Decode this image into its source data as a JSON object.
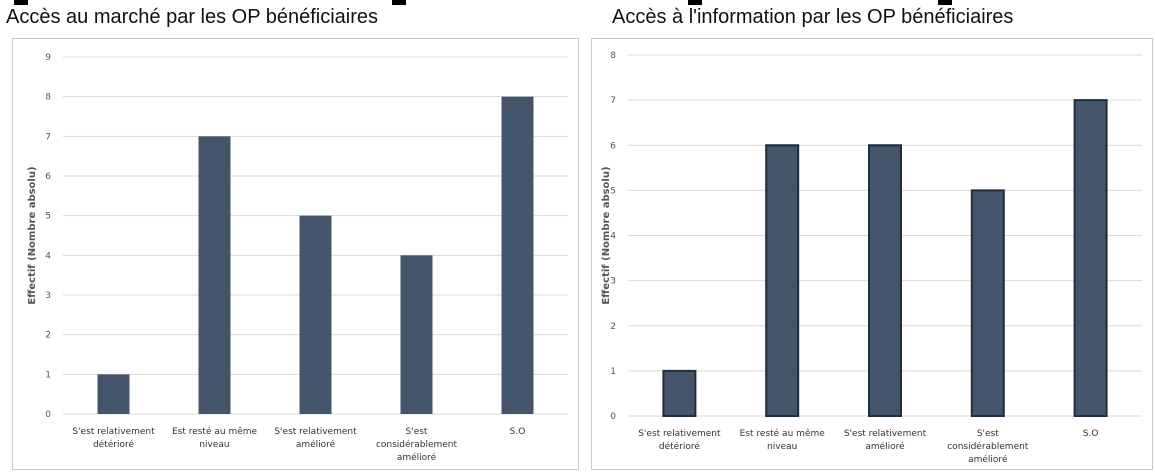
{
  "charts": [
    {
      "title": "Accès au marché par les OP bénéficiaires",
      "chart_data": {
        "type": "bar",
        "categories": [
          [
            "S'est relativement",
            "détérioré"
          ],
          [
            "Est resté au même",
            "niveau"
          ],
          [
            "S'est relativement",
            "amélioré"
          ],
          [
            "S'est",
            "considérablement",
            "amélioré"
          ],
          [
            "S.O"
          ]
        ],
        "values": [
          1,
          7,
          5,
          4,
          8
        ],
        "ylim": [
          0,
          9
        ],
        "yticks": [
          0,
          1,
          2,
          3,
          4,
          5,
          6,
          7,
          8,
          9
        ],
        "ylabel": "Effectif (Nombre absolu)",
        "xlabel": "",
        "grid": true
      }
    },
    {
      "title": "Accès à l'information par les OP bénéficiaires",
      "chart_data": {
        "type": "bar",
        "categories": [
          [
            "S'est relativement",
            "détérioré"
          ],
          [
            "Est resté au même",
            "niveau"
          ],
          [
            "S'est relativement",
            "amélioré"
          ],
          [
            "S'est",
            "considérablement",
            "amélioré"
          ],
          [
            "S.O"
          ]
        ],
        "values": [
          1,
          6,
          6,
          5,
          7
        ],
        "ylim": [
          0,
          8
        ],
        "yticks": [
          0,
          1,
          2,
          3,
          4,
          5,
          6,
          7,
          8
        ],
        "ylabel": "Effectif (Nombre absolu)",
        "xlabel": "",
        "grid": true
      }
    }
  ],
  "colors": {
    "bar": "#44546a",
    "bar_outline": "#1f2d3d",
    "grid": "#d9d9d9"
  }
}
